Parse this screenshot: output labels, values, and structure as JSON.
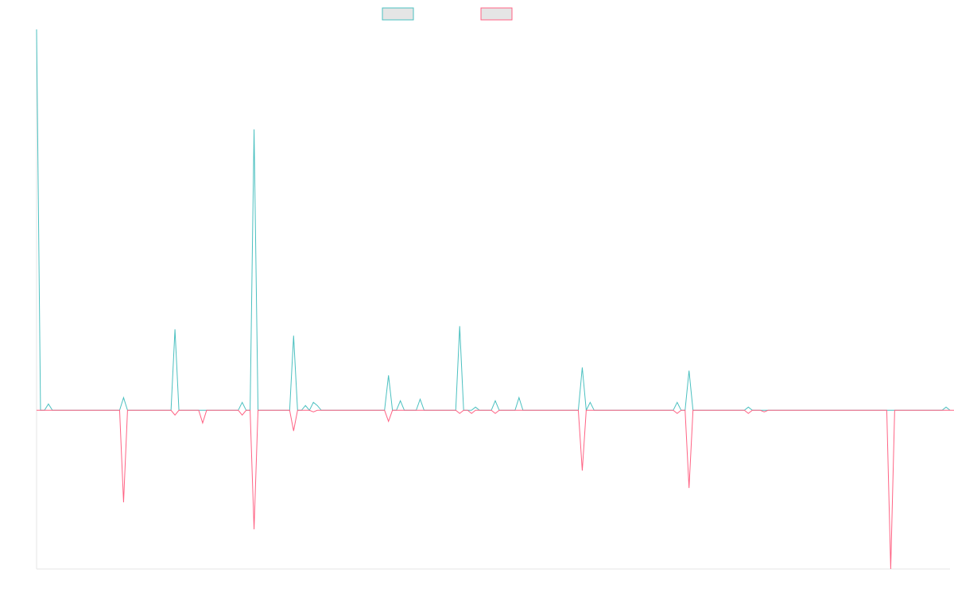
{
  "chart_data": {
    "type": "line",
    "title": "",
    "xlabel": "",
    "ylabel": "",
    "grid": false,
    "legend_position": "top-center",
    "ylim": [
      -1.0,
      2.4
    ],
    "series": [
      {
        "name": "",
        "color": "#4bc0c0",
        "fill": "#e5e5e5",
        "values": [
          2.4,
          0.0,
          0.0,
          0.04,
          0.0,
          0.0,
          0.0,
          0.0,
          0.0,
          0.0,
          0.0,
          0.0,
          0.0,
          0.0,
          0.0,
          0.0,
          0.0,
          0.0,
          0.0,
          0.0,
          0.0,
          0.0,
          0.08,
          0.0,
          0.0,
          0.0,
          0.0,
          0.0,
          0.0,
          0.0,
          0.0,
          0.0,
          0.0,
          0.0,
          0.0,
          0.51,
          0.0,
          0.0,
          0.0,
          0.0,
          0.0,
          0.0,
          0.0,
          0.0,
          0.0,
          0.0,
          0.0,
          0.0,
          0.0,
          0.0,
          0.0,
          0.0,
          0.05,
          0.0,
          0.0,
          1.77,
          0.0,
          0.0,
          0.0,
          0.0,
          0.0,
          0.0,
          0.0,
          0.0,
          0.0,
          0.47,
          0.0,
          0.0,
          0.03,
          0.0,
          0.05,
          0.03,
          0.0,
          0.0,
          0.0,
          0.0,
          0.0,
          0.0,
          0.0,
          0.0,
          0.0,
          0.0,
          0.0,
          0.0,
          0.0,
          0.0,
          0.0,
          0.0,
          0.0,
          0.22,
          0.0,
          0.0,
          0.06,
          0.0,
          0.0,
          0.0,
          0.0,
          0.07,
          0.0,
          0.0,
          0.0,
          0.0,
          0.0,
          0.0,
          0.0,
          0.0,
          0.0,
          0.53,
          0.0,
          0.0,
          0.0,
          0.02,
          0.0,
          0.0,
          0.0,
          0.0,
          0.06,
          0.0,
          0.0,
          0.0,
          0.0,
          0.0,
          0.08,
          0.0,
          0.0,
          0.0,
          0.0,
          0.0,
          0.0,
          0.0,
          0.0,
          0.0,
          0.0,
          0.0,
          0.0,
          0.0,
          0.0,
          0.0,
          0.27,
          0.0,
          0.05,
          0.0,
          0.0,
          0.0,
          0.0,
          0.0,
          0.0,
          0.0,
          0.0,
          0.0,
          0.0,
          0.0,
          0.0,
          0.0,
          0.0,
          0.0,
          0.0,
          0.0,
          0.0,
          0.0,
          0.0,
          0.0,
          0.05,
          0.0,
          0.0,
          0.25,
          0.0,
          0.0,
          0.0,
          0.0,
          0.0,
          0.0,
          0.0,
          0.0,
          0.0,
          0.0,
          0.0,
          0.0,
          0.0,
          0.0,
          0.02,
          0.0,
          0.0,
          0.0,
          0.0,
          0.0,
          0.0,
          0.0,
          0.0,
          0.0,
          0.0,
          0.0,
          0.0,
          0.0,
          0.0,
          0.0,
          0.0,
          0.0,
          0.0,
          0.0,
          0.0,
          0.0,
          0.0,
          0.0,
          0.0,
          0.0,
          0.0,
          0.0,
          0.0,
          0.0,
          0.0,
          0.0,
          0.0,
          0.0,
          0.0,
          0.0,
          0.0,
          0.0,
          0.0,
          0.0,
          0.0,
          0.0,
          0.0,
          0.0,
          0.0,
          0.0,
          0.0,
          0.0,
          0.0,
          0.0,
          0.02,
          0.0
        ]
      },
      {
        "name": "",
        "color": "#ff6384",
        "fill": "#e5e5e5",
        "values": [
          0.0,
          0.0,
          0.0,
          0.0,
          0.0,
          0.0,
          0.0,
          0.0,
          0.0,
          0.0,
          0.0,
          0.0,
          0.0,
          0.0,
          0.0,
          0.0,
          0.0,
          0.0,
          0.0,
          0.0,
          0.0,
          0.0,
          -0.58,
          0.0,
          0.0,
          0.0,
          0.0,
          0.0,
          0.0,
          0.0,
          0.0,
          0.0,
          0.0,
          0.0,
          0.0,
          -0.03,
          0.0,
          0.0,
          0.0,
          0.0,
          0.0,
          0.0,
          -0.08,
          0.0,
          0.0,
          0.0,
          0.0,
          0.0,
          0.0,
          0.0,
          0.0,
          0.0,
          -0.03,
          0.0,
          0.0,
          -0.75,
          0.0,
          0.0,
          0.0,
          0.0,
          0.0,
          0.0,
          0.0,
          0.0,
          0.0,
          -0.13,
          0.0,
          0.0,
          0.0,
          0.0,
          -0.01,
          0.0,
          0.0,
          0.0,
          0.0,
          0.0,
          0.0,
          0.0,
          0.0,
          0.0,
          0.0,
          0.0,
          0.0,
          0.0,
          0.0,
          0.0,
          0.0,
          0.0,
          0.0,
          -0.07,
          0.0,
          0.0,
          0.0,
          0.0,
          0.0,
          0.0,
          0.0,
          0.0,
          0.0,
          0.0,
          0.0,
          0.0,
          0.0,
          0.0,
          0.0,
          0.0,
          0.0,
          -0.02,
          0.0,
          0.0,
          -0.02,
          0.0,
          0.0,
          0.0,
          0.0,
          0.0,
          -0.02,
          0.0,
          0.0,
          0.0,
          0.0,
          0.0,
          0.0,
          0.0,
          0.0,
          0.0,
          0.0,
          0.0,
          0.0,
          0.0,
          0.0,
          0.0,
          0.0,
          0.0,
          0.0,
          0.0,
          0.0,
          0.0,
          -0.38,
          0.0,
          0.0,
          0.0,
          0.0,
          0.0,
          0.0,
          0.0,
          0.0,
          0.0,
          0.0,
          0.0,
          0.0,
          0.0,
          0.0,
          0.0,
          0.0,
          0.0,
          0.0,
          0.0,
          0.0,
          0.0,
          0.0,
          0.0,
          -0.02,
          0.0,
          0.0,
          -0.49,
          0.0,
          0.0,
          0.0,
          0.0,
          0.0,
          0.0,
          0.0,
          0.0,
          0.0,
          0.0,
          0.0,
          0.0,
          0.0,
          0.0,
          -0.02,
          0.0,
          0.0,
          0.0,
          -0.01,
          0.0,
          0.0,
          0.0,
          0.0,
          0.0,
          0.0,
          0.0,
          0.0,
          0.0,
          0.0,
          0.0,
          0.0,
          0.0,
          0.0,
          0.0,
          0.0,
          0.0,
          0.0,
          0.0,
          0.0,
          0.0,
          0.0,
          0.0,
          0.0,
          0.0,
          0.0,
          0.0,
          0.0,
          0.0,
          0.0,
          0.0,
          -1.0,
          0.0,
          0.0,
          0.0,
          0.0,
          0.0,
          0.0,
          0.0,
          0.0,
          0.0,
          0.0,
          0.0,
          0.0,
          0.0,
          0.0,
          0.0,
          0.0,
          0.0,
          0.0,
          0.0,
          0.0
        ]
      }
    ]
  }
}
